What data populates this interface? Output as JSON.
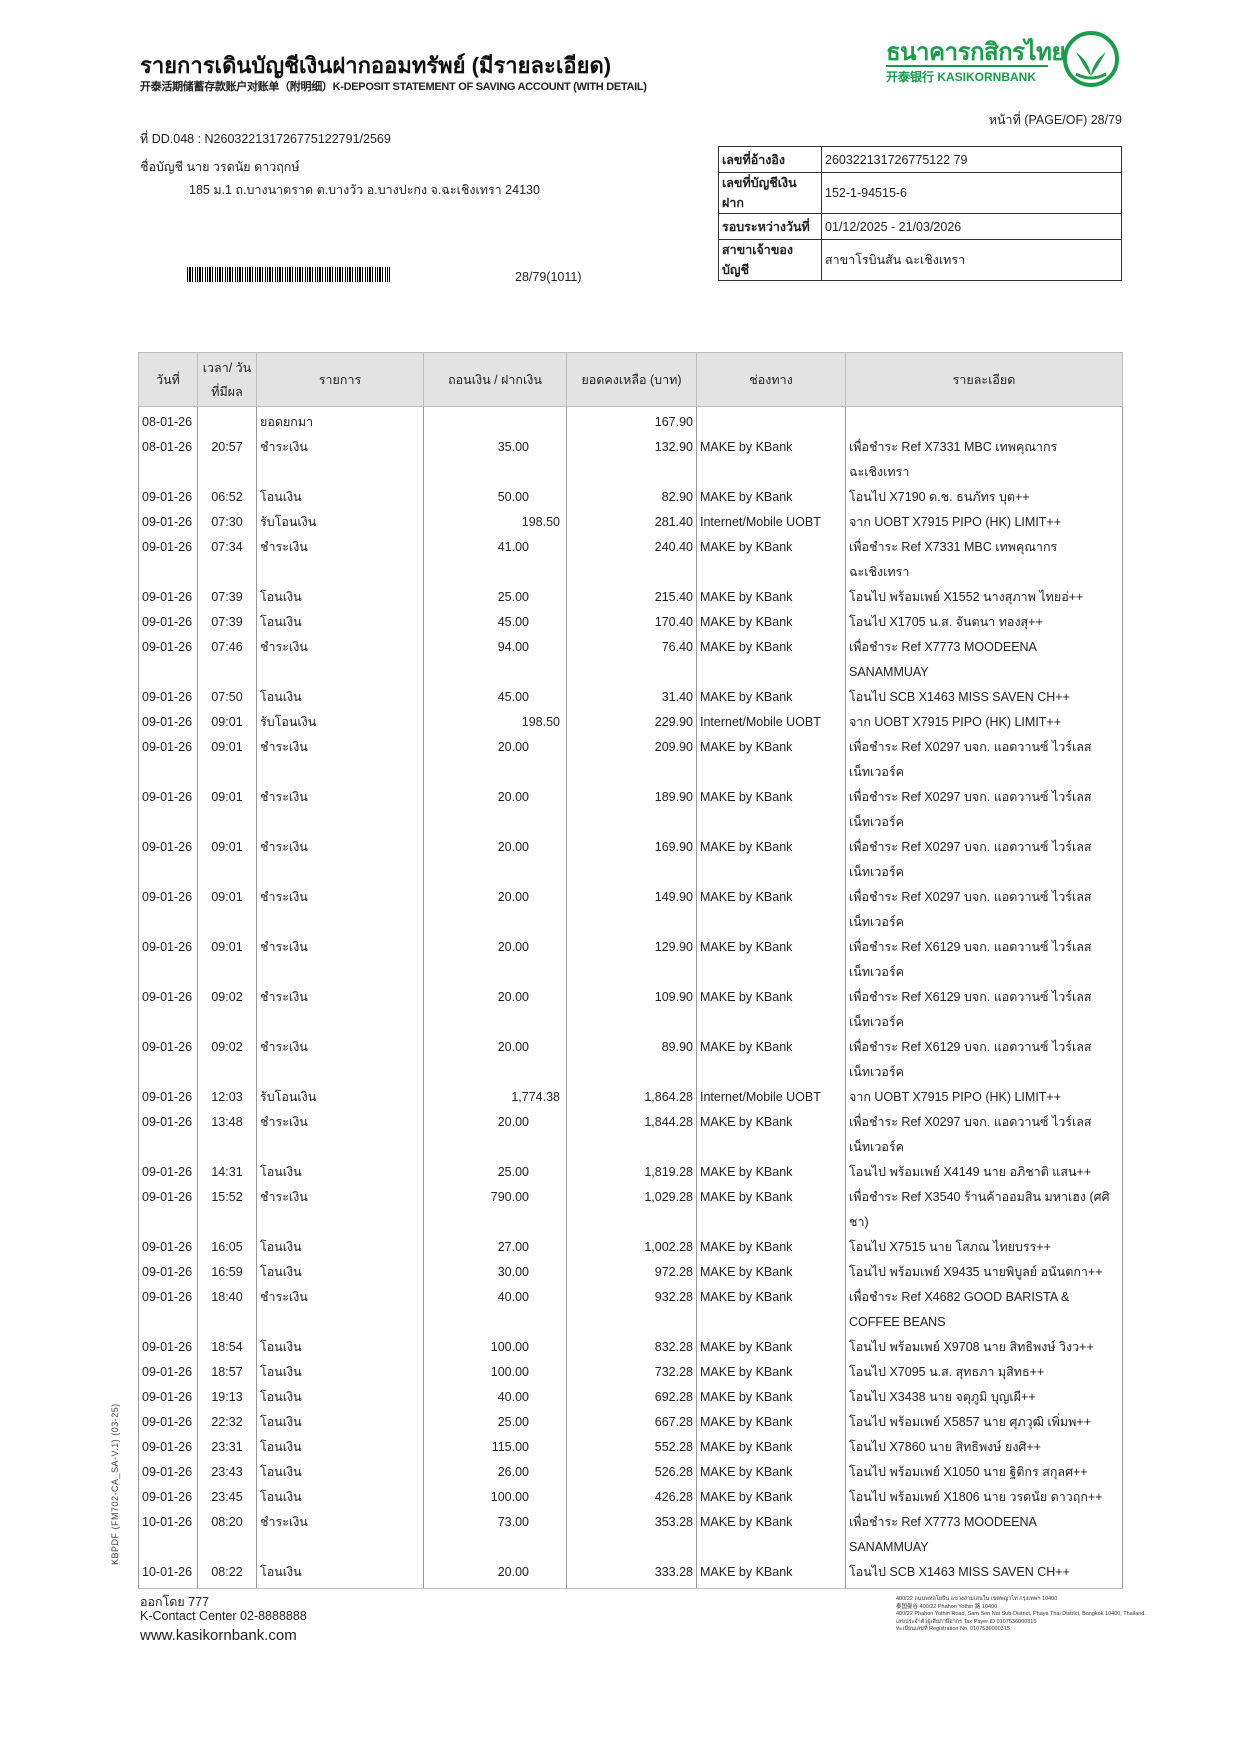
{
  "header": {
    "title": "รายการเดินบัญชีเงินฝากออมทรัพย์ (มีรายละเอียด)",
    "subtitle": "开泰活期储蓄存款账户对账单（附明细）K-DEPOSIT STATEMENT OF SAVING ACCOUNT (WITH DETAIL)",
    "logo_th": "ธนาคารกสิกรไทย",
    "logo_en": "开泰银行 KASIKORNBANK",
    "brand_color": "#1a9d4a",
    "page_of": "หน้าที่ (PAGE/OF) 28/79",
    "doc_no": "ที่ DD.048 : N260322131726775122791/2569",
    "account_name": "ชื่อบัญชี  นาย วรดนัย ดาวฤกษ์",
    "address": "185 ม.1 ถ.บางนาตราด ต.บางวัว อ.บางปะกง จ.ฉะเชิงเทรา 24130",
    "barcode_text": "28/79(1011)"
  },
  "info": [
    {
      "label": "เลขที่อ้างอิง",
      "value": "260322131726775122 79"
    },
    {
      "label": "เลขที่บัญชีเงินฝาก",
      "value": "152-1-94515-6"
    },
    {
      "label": "รอบระหว่างวันที่",
      "value": "01/12/2025 - 21/03/2026"
    },
    {
      "label": "สาขาเจ้าของบัญชี",
      "value": "สาขาโรบินสัน ฉะเชิงเทรา"
    }
  ],
  "table": {
    "headers": [
      "วันที่",
      "เวลา/ วันที่มีผล",
      "รายการ",
      "ถอนเงิน / ฝากเงิน",
      "ยอดคงเหลือ (บาท)",
      "ช่องทาง",
      "รายละเอียด"
    ],
    "rows": [
      {
        "date": "08-01-26",
        "time": "",
        "type": "ยอดยกมา",
        "wd": "",
        "dep": "",
        "bal": "167.90",
        "channel": "",
        "detail": [
          ""
        ]
      },
      {
        "date": "08-01-26",
        "time": "20:57",
        "type": "ชำระเงิน",
        "wd": "35.00",
        "dep": "",
        "bal": "132.90",
        "channel": "MAKE by KBank",
        "detail": [
          "เพื่อชำระ Ref X7331 MBC เทพคุณากร",
          "ฉะเชิงเทรา"
        ]
      },
      {
        "date": "09-01-26",
        "time": "06:52",
        "type": "โอนเงิน",
        "wd": "50.00",
        "dep": "",
        "bal": "82.90",
        "channel": "MAKE by KBank",
        "detail": [
          "โอนไป X7190 ด.ช. ธนภัทร บุต++"
        ]
      },
      {
        "date": "09-01-26",
        "time": "07:30",
        "type": "รับโอนเงิน",
        "wd": "",
        "dep": "198.50",
        "bal": "281.40",
        "channel": "Internet/Mobile UOBT",
        "detail": [
          "จาก UOBT X7915 PIPO (HK) LIMIT++"
        ]
      },
      {
        "date": "09-01-26",
        "time": "07:34",
        "type": "ชำระเงิน",
        "wd": "41.00",
        "dep": "",
        "bal": "240.40",
        "channel": "MAKE by KBank",
        "detail": [
          "เพื่อชำระ Ref X7331 MBC เทพคุณากร",
          "ฉะเชิงเทรา"
        ]
      },
      {
        "date": "09-01-26",
        "time": "07:39",
        "type": "โอนเงิน",
        "wd": "25.00",
        "dep": "",
        "bal": "215.40",
        "channel": "MAKE by KBank",
        "detail": [
          "โอนไป พร้อมเพย์ X1552 นางสุภาพ ไทยอ่++"
        ]
      },
      {
        "date": "09-01-26",
        "time": "07:39",
        "type": "โอนเงิน",
        "wd": "45.00",
        "dep": "",
        "bal": "170.40",
        "channel": "MAKE by KBank",
        "detail": [
          "โอนไป X1705 น.ส. จันตนา ทองสุ++"
        ]
      },
      {
        "date": "09-01-26",
        "time": "07:46",
        "type": "ชำระเงิน",
        "wd": "94.00",
        "dep": "",
        "bal": "76.40",
        "channel": "MAKE by KBank",
        "detail": [
          "เพื่อชำระ Ref X7773 MOODEENA",
          "SANAMMUAY"
        ]
      },
      {
        "date": "09-01-26",
        "time": "07:50",
        "type": "โอนเงิน",
        "wd": "45.00",
        "dep": "",
        "bal": "31.40",
        "channel": "MAKE by KBank",
        "detail": [
          "โอนไป SCB X1463 MISS SAVEN CH++"
        ]
      },
      {
        "date": "09-01-26",
        "time": "09:01",
        "type": "รับโอนเงิน",
        "wd": "",
        "dep": "198.50",
        "bal": "229.90",
        "channel": "Internet/Mobile UOBT",
        "detail": [
          "จาก UOBT X7915 PIPO (HK) LIMIT++"
        ]
      },
      {
        "date": "09-01-26",
        "time": "09:01",
        "type": "ชำระเงิน",
        "wd": "20.00",
        "dep": "",
        "bal": "209.90",
        "channel": "MAKE by KBank",
        "detail": [
          "เพื่อชำระ Ref X0297 บจก. แอดวานซ์ ไวร์เลส",
          "เน็ทเวอร์ค"
        ]
      },
      {
        "date": "09-01-26",
        "time": "09:01",
        "type": "ชำระเงิน",
        "wd": "20.00",
        "dep": "",
        "bal": "189.90",
        "channel": "MAKE by KBank",
        "detail": [
          "เพื่อชำระ Ref X0297 บจก. แอดวานซ์ ไวร์เลส",
          "เน็ทเวอร์ค"
        ]
      },
      {
        "date": "09-01-26",
        "time": "09:01",
        "type": "ชำระเงิน",
        "wd": "20.00",
        "dep": "",
        "bal": "169.90",
        "channel": "MAKE by KBank",
        "detail": [
          "เพื่อชำระ Ref X0297 บจก. แอดวานซ์ ไวร์เลส",
          "เน็ทเวอร์ค"
        ]
      },
      {
        "date": "09-01-26",
        "time": "09:01",
        "type": "ชำระเงิน",
        "wd": "20.00",
        "dep": "",
        "bal": "149.90",
        "channel": "MAKE by KBank",
        "detail": [
          "เพื่อชำระ Ref X0297 บจก. แอดวานซ์ ไวร์เลส",
          "เน็ทเวอร์ค"
        ]
      },
      {
        "date": "09-01-26",
        "time": "09:01",
        "type": "ชำระเงิน",
        "wd": "20.00",
        "dep": "",
        "bal": "129.90",
        "channel": "MAKE by KBank",
        "detail": [
          "เพื่อชำระ Ref X6129 บจก. แอดวานซ์ ไวร์เลส",
          "เน็ทเวอร์ค"
        ]
      },
      {
        "date": "09-01-26",
        "time": "09:02",
        "type": "ชำระเงิน",
        "wd": "20.00",
        "dep": "",
        "bal": "109.90",
        "channel": "MAKE by KBank",
        "detail": [
          "เพื่อชำระ Ref X6129 บจก. แอดวานซ์ ไวร์เลส",
          "เน็ทเวอร์ค"
        ]
      },
      {
        "date": "09-01-26",
        "time": "09:02",
        "type": "ชำระเงิน",
        "wd": "20.00",
        "dep": "",
        "bal": "89.90",
        "channel": "MAKE by KBank",
        "detail": [
          "เพื่อชำระ Ref X6129 บจก. แอดวานซ์ ไวร์เลส",
          "เน็ทเวอร์ค"
        ]
      },
      {
        "date": "09-01-26",
        "time": "12:03",
        "type": "รับโอนเงิน",
        "wd": "",
        "dep": "1,774.38",
        "bal": "1,864.28",
        "channel": "Internet/Mobile UOBT",
        "detail": [
          "จาก UOBT X7915 PIPO (HK) LIMIT++"
        ]
      },
      {
        "date": "09-01-26",
        "time": "13:48",
        "type": "ชำระเงิน",
        "wd": "20.00",
        "dep": "",
        "bal": "1,844.28",
        "channel": "MAKE by KBank",
        "detail": [
          "เพื่อชำระ Ref X0297 บจก. แอดวานซ์ ไวร์เลส",
          "เน็ทเวอร์ค"
        ]
      },
      {
        "date": "09-01-26",
        "time": "14:31",
        "type": "โอนเงิน",
        "wd": "25.00",
        "dep": "",
        "bal": "1,819.28",
        "channel": "MAKE by KBank",
        "detail": [
          "โอนไป พร้อมเพย์ X4149 นาย อภิชาติ แสน++"
        ]
      },
      {
        "date": "09-01-26",
        "time": "15:52",
        "type": "ชำระเงิน",
        "wd": "790.00",
        "dep": "",
        "bal": "1,029.28",
        "channel": "MAKE by KBank",
        "detail": [
          "เพื่อชำระ Ref X3540 ร้านค้าออมสิน มหาเฮง (ศศิ",
          "ชา)"
        ]
      },
      {
        "date": "09-01-26",
        "time": "16:05",
        "type": "โอนเงิน",
        "wd": "27.00",
        "dep": "",
        "bal": "1,002.28",
        "channel": "MAKE by KBank",
        "detail": [
          "โอนไป X7515 นาย โสภณ ไทยบรร++"
        ]
      },
      {
        "date": "09-01-26",
        "time": "16:59",
        "type": "โอนเงิน",
        "wd": "30.00",
        "dep": "",
        "bal": "972.28",
        "channel": "MAKE by KBank",
        "detail": [
          "โอนไป พร้อมเพย์ X9435 นายพิบูลย์ อนันตกา++"
        ]
      },
      {
        "date": "09-01-26",
        "time": "18:40",
        "type": "ชำระเงิน",
        "wd": "40.00",
        "dep": "",
        "bal": "932.28",
        "channel": "MAKE by KBank",
        "detail": [
          "เพื่อชำระ Ref X4682 GOOD BARISTA &",
          "COFFEE BEANS"
        ]
      },
      {
        "date": "09-01-26",
        "time": "18:54",
        "type": "โอนเงิน",
        "wd": "100.00",
        "dep": "",
        "bal": "832.28",
        "channel": "MAKE by KBank",
        "detail": [
          "โอนไป พร้อมเพย์ X9708 นาย สิทธิพงษ์ วิงว++"
        ]
      },
      {
        "date": "09-01-26",
        "time": "18:57",
        "type": "โอนเงิน",
        "wd": "100.00",
        "dep": "",
        "bal": "732.28",
        "channel": "MAKE by KBank",
        "detail": [
          "โอนไป X7095 น.ส. สุทธภา มุสิทธ++"
        ]
      },
      {
        "date": "09-01-26",
        "time": "19:13",
        "type": "โอนเงิน",
        "wd": "40.00",
        "dep": "",
        "bal": "692.28",
        "channel": "MAKE by KBank",
        "detail": [
          "โอนไป X3438 นาย จตุภูมิ บุญเผื++"
        ]
      },
      {
        "date": "09-01-26",
        "time": "22:32",
        "type": "โอนเงิน",
        "wd": "25.00",
        "dep": "",
        "bal": "667.28",
        "channel": "MAKE by KBank",
        "detail": [
          "โอนไป พร้อมเพย์ X5857 นาย ศุภวุฒิ เพิ่มพ++"
        ]
      },
      {
        "date": "09-01-26",
        "time": "23:31",
        "type": "โอนเงิน",
        "wd": "115.00",
        "dep": "",
        "bal": "552.28",
        "channel": "MAKE by KBank",
        "detail": [
          "โอนไป X7860 นาย สิทธิพงษ์ ยงศิ++"
        ]
      },
      {
        "date": "09-01-26",
        "time": "23:43",
        "type": "โอนเงิน",
        "wd": "26.00",
        "dep": "",
        "bal": "526.28",
        "channel": "MAKE by KBank",
        "detail": [
          "โอนไป พร้อมเพย์ X1050 นาย ฐิติกร สกุลศ++"
        ]
      },
      {
        "date": "09-01-26",
        "time": "23:45",
        "type": "โอนเงิน",
        "wd": "100.00",
        "dep": "",
        "bal": "426.28",
        "channel": "MAKE by KBank",
        "detail": [
          "โอนไป พร้อมเพย์ X1806 นาย วรดนัย ดาวฤก++"
        ]
      },
      {
        "date": "10-01-26",
        "time": "08:20",
        "type": "ชำระเงิน",
        "wd": "73.00",
        "dep": "",
        "bal": "353.28",
        "channel": "MAKE by KBank",
        "detail": [
          "เพื่อชำระ Ref X7773 MOODEENA",
          "SANAMMUAY"
        ]
      },
      {
        "date": "10-01-26",
        "time": "08:22",
        "type": "โอนเงิน",
        "wd": "20.00",
        "dep": "",
        "bal": "333.28",
        "channel": "MAKE by KBank",
        "detail": [
          "โอนไป SCB X1463 MISS SAVEN CH++"
        ]
      }
    ]
  },
  "footer": {
    "form_code": "KBPDF (FM702-CA_SA-V.1) (03-25)",
    "issued_by": "ออกโดย 777",
    "contact": "K-Contact Center 02-8888888",
    "website": "www.kasikornbank.com",
    "bank_address": [
      "400/22 ถนนพหลโยธิน แขวงสามเสนใน เขตพญาไท กรุงเทพฯ 10400",
      "泰国曼谷 400/22 Phahon Yothin 路 10400",
      "400/22 Phahon Yothin Road, Sam Sen Nai Sub-District, Phaya Thai District, Bangkok 10400, Thailand.",
      "เลขประจำตัวผู้เสียภาษีอากร Tax Payer ID 0107536000315",
      "ทะเบียนเลขที่ Registration No. 0107536000315"
    ]
  }
}
